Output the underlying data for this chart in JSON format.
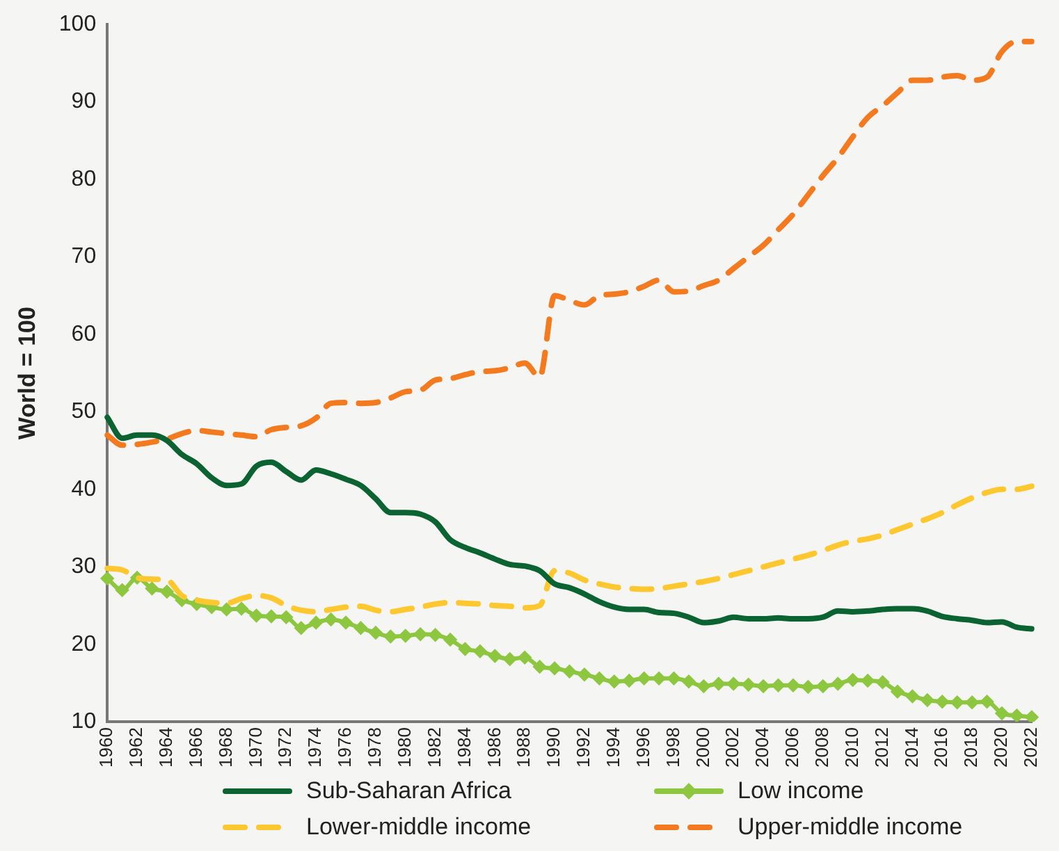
{
  "chart_data": {
    "type": "line",
    "ylabel": "World = 100",
    "categories": [
      "1960",
      null,
      "1962",
      null,
      "1964",
      null,
      "1966",
      null,
      "1968",
      null,
      "1970",
      null,
      "1972",
      null,
      "1974",
      null,
      "1976",
      null,
      "1978",
      null,
      "1980",
      null,
      "1982",
      null,
      "1984",
      null,
      "1986",
      null,
      "1988",
      null,
      "1990",
      null,
      "1992",
      null,
      "1994",
      null,
      "1996",
      null,
      "1998",
      null,
      "2000",
      null,
      "2002",
      null,
      "2004",
      null,
      "2006",
      null,
      "2008",
      null,
      "2010",
      null,
      "2012",
      null,
      "2014",
      null,
      "2016",
      null,
      "2018",
      null,
      "2020",
      null,
      "2022"
    ],
    "ylim": [
      10,
      100
    ],
    "yticks": [
      10,
      20,
      30,
      40,
      50,
      60,
      70,
      80,
      90,
      100
    ],
    "grid": false,
    "legend": "bottom",
    "series": [
      {
        "name": "Sub-Saharan Africa",
        "color": "#0a6331",
        "line_style": "solid",
        "values": [
          49.3,
          46.6,
          47,
          47,
          46.3,
          44.5,
          43.3,
          41.5,
          40.5,
          40.7,
          43,
          43.5,
          42.3,
          41.2,
          42.5,
          42,
          41.3,
          40.5,
          38.8,
          37,
          37,
          36.8,
          35.8,
          33.5,
          32.5,
          31.8,
          31,
          30.3,
          30.1,
          29.5,
          27.8,
          27.3,
          26.5,
          25.5,
          24.8,
          24.5,
          24.5,
          24.1,
          24,
          23.5,
          22.8,
          23,
          23.5,
          23.3,
          23.3,
          23.4,
          23.3,
          23.3,
          23.5,
          24.3,
          24.2,
          24.3,
          24.5,
          24.6,
          24.6,
          24.3,
          23.6,
          23.3,
          23.1,
          22.8,
          22.9,
          22.2,
          22
        ]
      },
      {
        "name": "Low income",
        "color": "#8dc63f",
        "line_style": "solid",
        "marker": "diamond",
        "values": [
          28.5,
          27,
          28.6,
          27.2,
          26.8,
          25.7,
          25.2,
          24.8,
          24.5,
          24.6,
          23.7,
          23.6,
          23.5,
          22.1,
          22.8,
          23.2,
          22.8,
          22.1,
          21.5,
          21,
          21.1,
          21.3,
          21.2,
          20.6,
          19.4,
          19.1,
          18.5,
          18.1,
          18.3,
          17.1,
          16.9,
          16.5,
          16.1,
          15.6,
          15.2,
          15.3,
          15.6,
          15.6,
          15.6,
          15.2,
          14.6,
          14.9,
          14.9,
          14.8,
          14.6,
          14.7,
          14.7,
          14.5,
          14.6,
          14.9,
          15.4,
          15.3,
          15.1,
          13.9,
          13.3,
          12.8,
          12.6,
          12.5,
          12.5,
          12.6,
          11.1,
          10.8,
          10.6
        ]
      },
      {
        "name": "Lower-middle income",
        "color": "#fdc82f",
        "line_style": "dashed",
        "values": [
          29.8,
          29.6,
          28.6,
          28.4,
          28.3,
          26.3,
          25.7,
          25.4,
          25.3,
          25.9,
          26.3,
          26,
          25,
          24.4,
          24.2,
          24.5,
          24.8,
          24.9,
          24.4,
          24.2,
          24.5,
          24.8,
          25.2,
          25.4,
          25.3,
          25.2,
          25,
          24.9,
          24.7,
          25,
          29.5,
          29.2,
          28.3,
          27.8,
          27.4,
          27.2,
          27.1,
          27.2,
          27.5,
          27.8,
          28.1,
          28.5,
          29,
          29.5,
          30,
          30.5,
          31,
          31.5,
          32.1,
          32.8,
          33.3,
          33.6,
          34.1,
          34.8,
          35.5,
          36.2,
          37,
          38,
          38.9,
          39.6,
          40,
          40,
          40.4
        ]
      },
      {
        "name": "Upper-middle income",
        "color": "#f47a20",
        "line_style": "dashed",
        "values": [
          47,
          45.7,
          45.8,
          46.1,
          46.5,
          47.2,
          47.6,
          47.4,
          47.2,
          47,
          46.8,
          47.7,
          48,
          48.2,
          49.2,
          51.1,
          51.2,
          51.1,
          51.2,
          51.8,
          52.6,
          52.8,
          54.1,
          54.3,
          54.8,
          55.2,
          55.3,
          55.7,
          56.3,
          54.5,
          65,
          64.4,
          63.8,
          65,
          65.2,
          65.5,
          66.2,
          67,
          65.5,
          65.6,
          66.3,
          67,
          68.5,
          70,
          71.5,
          73.5,
          75.5,
          78,
          80.5,
          82.8,
          85.5,
          88,
          89.5,
          91.2,
          92.8,
          92.8,
          93.2,
          93.4,
          92.8,
          93.2,
          96.5,
          97.8,
          97.8
        ]
      }
    ]
  }
}
